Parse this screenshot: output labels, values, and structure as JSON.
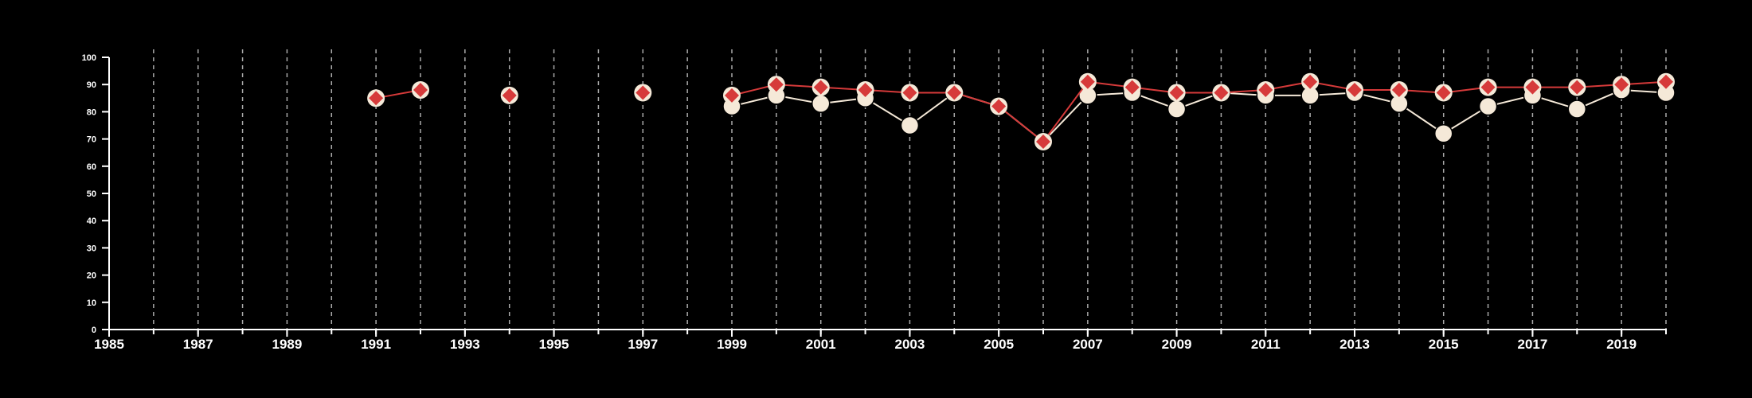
{
  "chart_data": {
    "type": "line",
    "title": "",
    "xlabel": "",
    "ylabel": "",
    "xlim": [
      1985,
      2020
    ],
    "ylim": [
      0,
      100
    ],
    "x_ticks": [
      1985,
      1987,
      1989,
      1991,
      1993,
      1995,
      1997,
      1999,
      2001,
      2003,
      2005,
      2007,
      2009,
      2011,
      2013,
      2015,
      2017,
      2019
    ],
    "y_ticks": [
      0,
      10,
      20,
      30,
      40,
      50,
      60,
      70,
      80,
      90,
      100
    ],
    "vertical_grid": "dashed, every year 1986-2020",
    "legend": "none",
    "series": [
      {
        "marker": "circle",
        "color": "#f5e9d8",
        "points": [
          [
            1999,
            82
          ],
          [
            2000,
            86
          ],
          [
            2001,
            83
          ],
          [
            2002,
            85
          ],
          [
            2003,
            75
          ],
          [
            2004,
            87
          ],
          [
            2005,
            82
          ],
          [
            2006,
            69
          ],
          [
            2007,
            86
          ],
          [
            2008,
            87
          ],
          [
            2009,
            81
          ],
          [
            2010,
            87
          ],
          [
            2011,
            86
          ],
          [
            2012,
            86
          ],
          [
            2013,
            87
          ],
          [
            2014,
            83
          ],
          [
            2015,
            72
          ],
          [
            2016,
            82
          ],
          [
            2017,
            86
          ],
          [
            2018,
            81
          ],
          [
            2019,
            88
          ],
          [
            2020,
            87
          ]
        ]
      },
      {
        "marker": "diamond",
        "color": "#d63a3a",
        "points": [
          [
            1991,
            85
          ],
          [
            1992,
            88
          ],
          [
            1994,
            86
          ],
          [
            1997,
            87
          ],
          [
            1999,
            86
          ],
          [
            2000,
            90
          ],
          [
            2001,
            89
          ],
          [
            2002,
            88
          ],
          [
            2003,
            87
          ],
          [
            2004,
            87
          ],
          [
            2005,
            82
          ],
          [
            2006,
            69
          ],
          [
            2007,
            91
          ],
          [
            2008,
            89
          ],
          [
            2009,
            87
          ],
          [
            2010,
            87
          ],
          [
            2011,
            88
          ],
          [
            2012,
            91
          ],
          [
            2013,
            88
          ],
          [
            2014,
            88
          ],
          [
            2015,
            87
          ],
          [
            2016,
            89
          ],
          [
            2017,
            89
          ],
          [
            2018,
            89
          ],
          [
            2019,
            90
          ],
          [
            2020,
            91
          ]
        ]
      }
    ]
  },
  "colors": {
    "background": "#000000",
    "axis": "#ffffff",
    "grid": "#aaaaaa"
  }
}
